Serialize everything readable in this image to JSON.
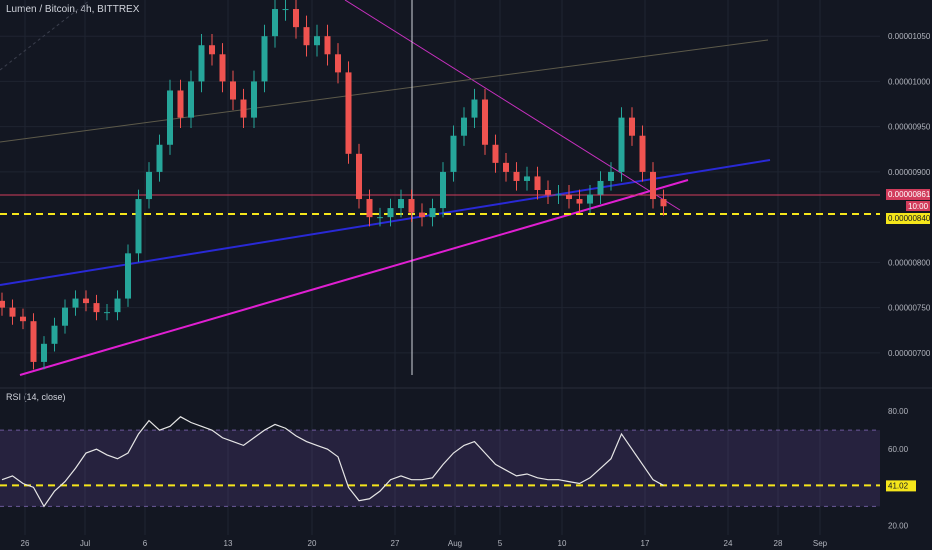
{
  "chart_data": [
    {
      "type": "candlestick",
      "title": "Lumen / Bitcoin, 4h, BITTREX",
      "ylim": [
        6.7e-06,
        1.09e-05
      ],
      "y_ticks": [
        "0.00001050",
        "0.00001000",
        "0.00000950",
        "0.00000900",
        "0.00000800",
        "0.00000750",
        "0.00000700"
      ],
      "x_ticks": [
        "26",
        "Jul",
        "6",
        "13",
        "20",
        "27",
        "Aug",
        "5",
        "10",
        "17",
        "24",
        "28",
        "Sep"
      ],
      "series": [
        {
          "close": [
            7.5e-06,
            7.4e-06,
            7.35e-06,
            6.9e-06,
            7.1e-06,
            7.3e-06,
            7.5e-06,
            7.6e-06,
            7.55e-06,
            7.45e-06,
            7.45e-06,
            7.6e-06,
            8.1e-06,
            8.7e-06,
            9e-06,
            9.3e-06,
            9.9e-06,
            9.6e-06,
            1e-05,
            1.04e-05,
            1.03e-05,
            1e-05,
            9.8e-06,
            9.6e-06,
            1e-05,
            1.05e-05,
            1.08e-05,
            1.08e-05,
            1.06e-05,
            1.04e-05,
            1.05e-05,
            1.03e-05,
            1.01e-05,
            9.2e-06,
            8.7e-06,
            8.5e-06,
            8.5e-06,
            8.6e-06,
            8.7e-06,
            8.55e-06,
            8.5e-06,
            8.6e-06,
            9e-06,
            9.4e-06,
            9.6e-06,
            9.8e-06,
            9.3e-06,
            9.1e-06,
            9e-06,
            8.9e-06,
            8.95e-06,
            8.8e-06,
            8.75e-06,
            8.75e-06,
            8.7e-06,
            8.65e-06,
            8.75e-06,
            8.9e-06,
            9e-06,
            9.6e-06,
            9.4e-06,
            9e-06,
            8.7e-06,
            8.62e-06
          ]
        }
      ],
      "price_labels": [
        "0.00000861",
        "10:00",
        "0.00000840"
      ]
    },
    {
      "type": "line",
      "title": "RSI (14, close)",
      "ylim": [
        15,
        90
      ],
      "y_ticks": [
        "80.00",
        "60.00",
        "20.00"
      ],
      "last_label": "41.02",
      "series": [
        {
          "values": [
            44,
            46,
            42,
            40,
            30,
            38,
            43,
            50,
            58,
            60,
            57,
            55,
            58,
            68,
            75,
            70,
            72,
            77,
            74,
            72,
            70,
            66,
            64,
            62,
            66,
            70,
            73,
            71,
            67,
            64,
            62,
            60,
            56,
            40,
            33,
            34,
            38,
            44,
            46,
            44,
            44,
            45,
            52,
            58,
            62,
            64,
            58,
            52,
            49,
            46,
            47,
            45,
            44,
            44,
            43,
            42,
            45,
            50,
            55,
            68,
            60,
            52,
            44,
            41
          ]
        }
      ]
    }
  ]
}
